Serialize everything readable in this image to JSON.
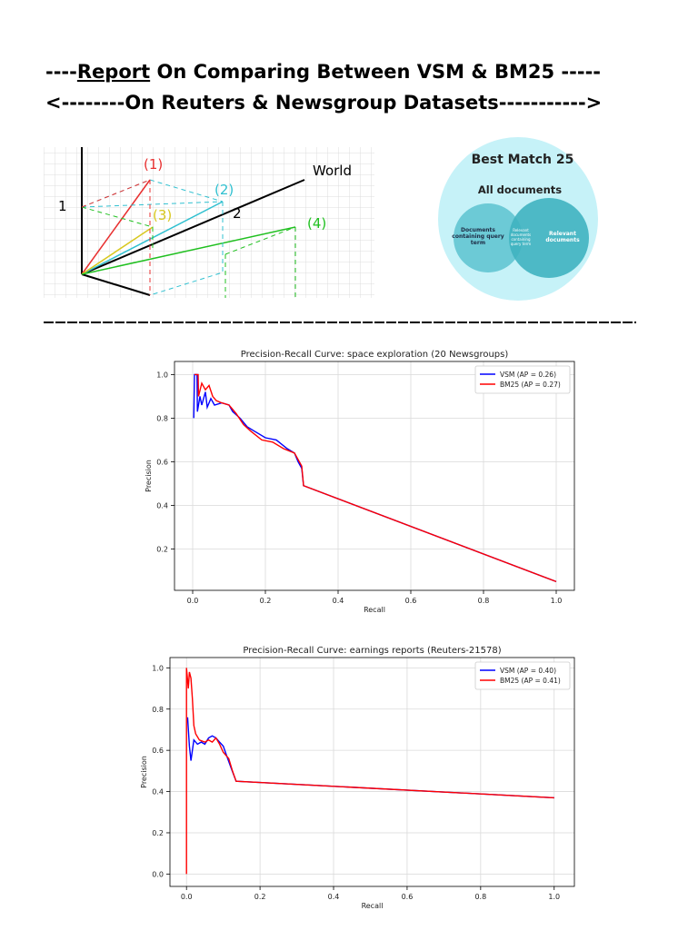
{
  "header": {
    "line1_prefix": "----",
    "line1_underlined": "Report",
    "line1_rest": " On Comparing Between VSM & BM25 -----",
    "line2": "<--------On Reuters & Newsgroup Datasets----------->"
  },
  "diagram_vsm": {
    "labels": [
      "(1)",
      "(2)",
      "(3)",
      "(4)",
      "World",
      "1",
      "2"
    ]
  },
  "diagram_bm25": {
    "title": "Best Match 25",
    "outer": "All documents",
    "left": "Documents containing query term",
    "middle": "Relevant documents containing query term",
    "right": "Relevant documents"
  },
  "chart_data": [
    {
      "type": "line",
      "title": "Precision-Recall Curve: space exploration (20 Newsgroups)",
      "x_label": "Recall",
      "y_label": "Precision",
      "xlim": [
        -0.05,
        1.05
      ],
      "ylim": [
        0.01,
        1.06
      ],
      "xticks": [
        {
          "value": 0,
          "label": "0.0"
        },
        0.2,
        0.4,
        0.6,
        0.8,
        {
          "value": 1,
          "label": "1.0"
        }
      ],
      "yticks": [
        0.2,
        0.4,
        0.6,
        0.8,
        {
          "value": 1,
          "label": "1.0"
        }
      ],
      "grid": true,
      "legend": "upper right",
      "series": [
        {
          "name": "VSM (AP = 0.26)",
          "color": "#0000ff",
          "x": [
            0.003,
            0.005,
            0.012,
            0.013,
            0.02,
            0.025,
            0.035,
            0.04,
            0.05,
            0.06,
            0.08,
            0.1,
            0.11,
            0.13,
            0.15,
            0.17,
            0.2,
            0.23,
            0.26,
            0.28,
            0.29,
            0.3,
            0.305,
            1.0
          ],
          "values": [
            0.8,
            1.0,
            1.0,
            0.83,
            0.9,
            0.86,
            0.92,
            0.85,
            0.89,
            0.86,
            0.87,
            0.86,
            0.83,
            0.8,
            0.76,
            0.74,
            0.71,
            0.7,
            0.66,
            0.64,
            0.6,
            0.57,
            0.49,
            0.05
          ]
        },
        {
          "name": "BM25 (AP = 0.27)",
          "color": "#ff0000",
          "x": [
            0.005,
            0.015,
            0.016,
            0.025,
            0.035,
            0.045,
            0.055,
            0.065,
            0.08,
            0.1,
            0.12,
            0.14,
            0.16,
            0.19,
            0.22,
            0.25,
            0.28,
            0.3,
            0.305,
            1.0
          ],
          "values": [
            1.0,
            1.0,
            0.9,
            0.96,
            0.93,
            0.95,
            0.9,
            0.88,
            0.87,
            0.86,
            0.82,
            0.77,
            0.74,
            0.7,
            0.69,
            0.66,
            0.64,
            0.58,
            0.49,
            0.05
          ]
        }
      ]
    },
    {
      "type": "line",
      "title": "Precision-Recall Curve: earnings reports (Reuters-21578)",
      "x_label": "Recall",
      "y_label": "Precision",
      "xlim": [
        -0.045,
        1.055
      ],
      "ylim": [
        -0.06,
        1.05
      ],
      "xticks": [
        {
          "value": 0,
          "label": "0.0"
        },
        0.2,
        0.4,
        0.6,
        0.8,
        {
          "value": 1,
          "label": "1.0"
        }
      ],
      "yticks": [
        {
          "value": 0,
          "label": "0.0"
        },
        0.2,
        0.4,
        0.6,
        0.8,
        {
          "value": 1,
          "label": "1.0"
        }
      ],
      "grid": true,
      "legend": "upper right",
      "series": [
        {
          "name": "VSM (AP = 0.40)",
          "color": "#0000ff",
          "x": [
            0.003,
            0.008,
            0.012,
            0.02,
            0.03,
            0.04,
            0.05,
            0.06,
            0.07,
            0.08,
            0.09,
            0.1,
            0.11,
            0.12,
            0.135,
            1.0
          ],
          "values": [
            0.76,
            0.62,
            0.55,
            0.65,
            0.63,
            0.64,
            0.63,
            0.66,
            0.67,
            0.66,
            0.64,
            0.62,
            0.57,
            0.52,
            0.45,
            0.37
          ]
        },
        {
          "name": "BM25 (AP = 0.41)",
          "color": "#ff0000",
          "x": [
            0.0,
            0.0,
            0.005,
            0.008,
            0.012,
            0.016,
            0.02,
            0.025,
            0.035,
            0.05,
            0.06,
            0.07,
            0.08,
            0.09,
            0.1,
            0.115,
            0.125,
            0.135,
            1.0
          ],
          "values": [
            0.0,
            1.0,
            0.9,
            0.98,
            0.95,
            0.85,
            0.72,
            0.68,
            0.65,
            0.64,
            0.65,
            0.64,
            0.66,
            0.63,
            0.59,
            0.56,
            0.5,
            0.45,
            0.37
          ]
        }
      ]
    }
  ]
}
